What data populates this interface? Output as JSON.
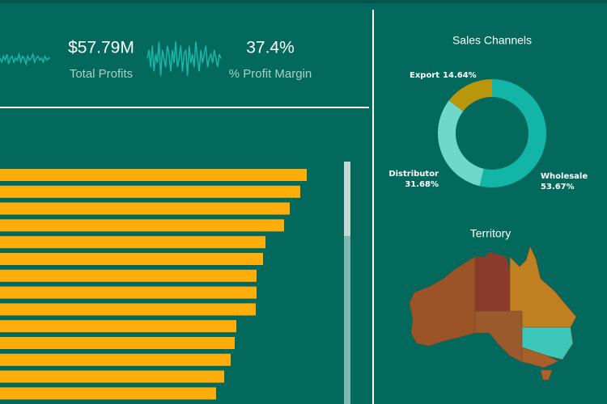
{
  "kpis": [
    {
      "value": "$57.79M",
      "label": "Total Profits"
    },
    {
      "value": "37.4%",
      "label": "% Profit Margin"
    }
  ],
  "chart_data": [
    {
      "type": "line",
      "color": "#19b7a7",
      "ylim": [
        0,
        10
      ],
      "values": [
        5,
        3,
        6,
        4,
        7,
        2,
        5,
        6,
        3,
        5,
        4,
        7,
        3,
        6,
        5,
        2,
        6,
        4,
        5,
        7,
        3,
        5,
        6,
        4,
        5,
        3,
        6,
        4,
        5,
        5
      ]
    },
    {
      "type": "line",
      "color": "#19b7a7",
      "ylim": [
        0,
        10
      ],
      "values": [
        5,
        7,
        3,
        8,
        2,
        6,
        4,
        9,
        1,
        7,
        5,
        3,
        8,
        6,
        2,
        7,
        4,
        9,
        3,
        5,
        8,
        2,
        6,
        7,
        1,
        8,
        4,
        6,
        3,
        9,
        5,
        2,
        7,
        4,
        6,
        8,
        3,
        5,
        6,
        4,
        7,
        5,
        3,
        6,
        5
      ]
    },
    {
      "type": "bar",
      "orientation": "horizontal",
      "color": "#ffad0a",
      "xlim": [
        0,
        400
      ],
      "categories": [
        null,
        null,
        null,
        null,
        null,
        null,
        null,
        null,
        null,
        null,
        null,
        null,
        null,
        null
      ],
      "values": [
        379,
        371,
        358,
        351,
        328,
        325,
        317,
        317,
        316,
        292,
        290,
        285,
        277,
        267
      ]
    },
    {
      "type": "pie",
      "title": "Sales Channels",
      "categories": [
        "Wholesale",
        "Distributor",
        "Export"
      ],
      "values": [
        53.67,
        31.68,
        14.64
      ],
      "value_labels": [
        "53.67%",
        "31.68%",
        "14.64%"
      ],
      "colors": [
        "#12b5a6",
        "#6fd8cb",
        "#b9970a"
      ]
    },
    {
      "type": "map",
      "title": "Territory"
    }
  ]
}
